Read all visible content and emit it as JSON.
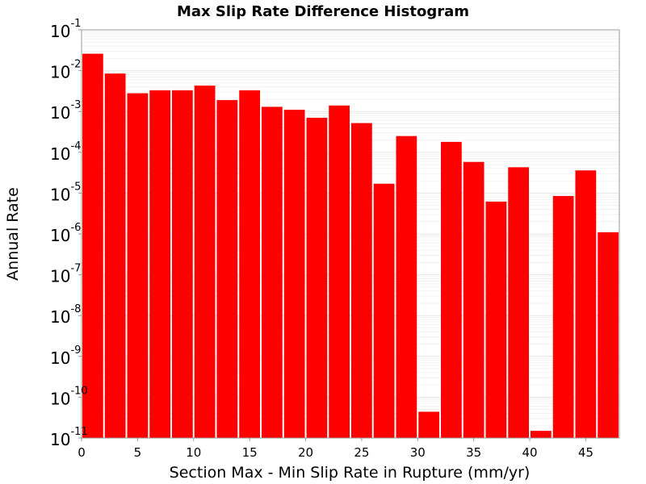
{
  "chart_data": {
    "type": "bar",
    "title": "Max Slip Rate Difference Histogram",
    "xlabel": "Section Max - Min Slip Rate in Rupture (mm/yr)",
    "ylabel": "Annual Rate",
    "yscale": "log",
    "grid": true,
    "legend": "none",
    "bar_color": "#ff0000",
    "xlim": [
      0,
      48
    ],
    "ylim": [
      1e-11,
      0.1
    ],
    "bin_width": 2,
    "x_ticks": [
      {
        "value": 0,
        "label": "0"
      },
      {
        "value": 5,
        "label": "5"
      },
      {
        "value": 10,
        "label": "10"
      },
      {
        "value": 15,
        "label": "15"
      },
      {
        "value": 20,
        "label": "20"
      },
      {
        "value": 25,
        "label": "25"
      },
      {
        "value": 30,
        "label": "30"
      },
      {
        "value": 35,
        "label": "35"
      },
      {
        "value": 40,
        "label": "40"
      },
      {
        "value": 45,
        "label": "45"
      }
    ],
    "y_ticks": [
      {
        "value": 0.1,
        "base": "10",
        "exp": "-1"
      },
      {
        "value": 0.01,
        "base": "10",
        "exp": "-2"
      },
      {
        "value": 0.001,
        "base": "10",
        "exp": "-3"
      },
      {
        "value": 0.0001,
        "base": "10",
        "exp": "-4"
      },
      {
        "value": 1e-05,
        "base": "10",
        "exp": "-5"
      },
      {
        "value": 1e-06,
        "base": "10",
        "exp": "-6"
      },
      {
        "value": 1e-07,
        "base": "10",
        "exp": "-7"
      },
      {
        "value": 1e-08,
        "base": "10",
        "exp": "-8"
      },
      {
        "value": 1e-09,
        "base": "10",
        "exp": "-9"
      },
      {
        "value": 1e-10,
        "base": "10",
        "exp": "-10"
      },
      {
        "value": 1e-11,
        "base": "10",
        "exp": "-11"
      }
    ],
    "bins": [
      {
        "x": 1,
        "value": 0.026
      },
      {
        "x": 3,
        "value": 0.0085
      },
      {
        "x": 5,
        "value": 0.0028
      },
      {
        "x": 7,
        "value": 0.0033
      },
      {
        "x": 9,
        "value": 0.0033
      },
      {
        "x": 11,
        "value": 0.0043
      },
      {
        "x": 13,
        "value": 0.0019
      },
      {
        "x": 15,
        "value": 0.0033
      },
      {
        "x": 17,
        "value": 0.0013
      },
      {
        "x": 19,
        "value": 0.0011
      },
      {
        "x": 21,
        "value": 0.0007
      },
      {
        "x": 23,
        "value": 0.0014
      },
      {
        "x": 25,
        "value": 0.00052
      },
      {
        "x": 27,
        "value": 1.7e-05
      },
      {
        "x": 29,
        "value": 0.00025
      },
      {
        "x": 31,
        "value": 4.4e-11
      },
      {
        "x": 33,
        "value": 0.00018
      },
      {
        "x": 35,
        "value": 5.8e-05
      },
      {
        "x": 37,
        "value": 6.2e-06
      },
      {
        "x": 39,
        "value": 4.3e-05
      },
      {
        "x": 41,
        "value": 1.5e-11
      },
      {
        "x": 43,
        "value": 8.5e-06
      },
      {
        "x": 45,
        "value": 3.6e-05
      },
      {
        "x": 47,
        "value": 1.1e-06
      }
    ]
  }
}
